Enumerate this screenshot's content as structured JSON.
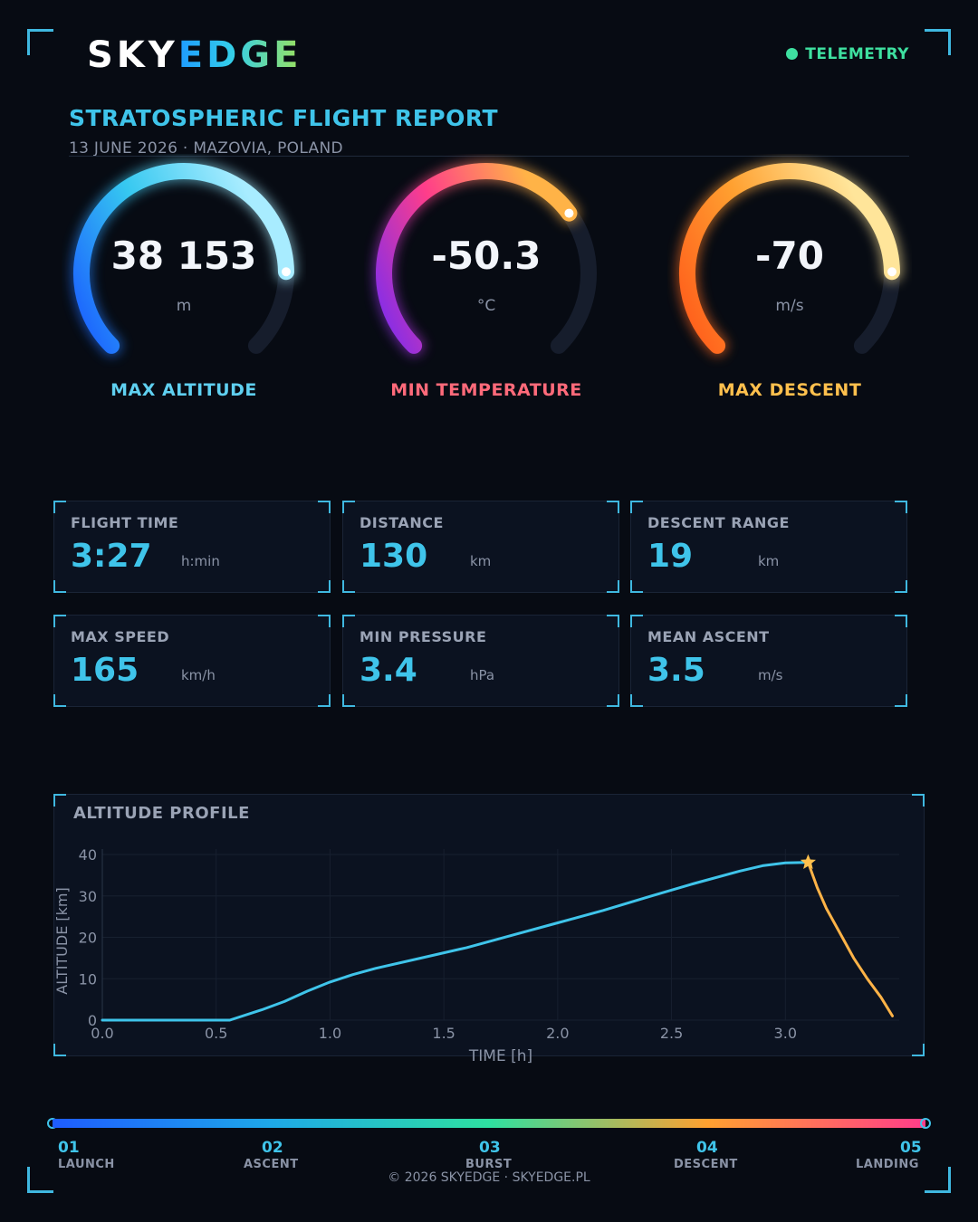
{
  "header": {
    "logo_white": "SKY",
    "logo_gradient": "EDGE",
    "status": "TELEMETRY",
    "status_color": "#3ee0a0"
  },
  "report": {
    "title": "STRATOSPHERIC FLIGHT REPORT",
    "subtitle": "13 JUNE 2026  ·  MAZOVIA, POLAND"
  },
  "gauges": [
    {
      "value": "38 153",
      "unit": "m",
      "label": "MAX ALTITUDE",
      "label_color": "#5fd0f0",
      "fill": 0.83,
      "colors": [
        "#1a5cff",
        "#36c8f0",
        "#a8ecff"
      ]
    },
    {
      "value": "-50.3",
      "unit": "°C",
      "label": "MIN TEMPERATURE",
      "label_color": "#ff6a7a",
      "fill": 0.7,
      "colors": [
        "#7b2cf0",
        "#ff3d8a",
        "#ffb347"
      ]
    },
    {
      "value": "-70",
      "unit": "m/s",
      "label": "MAX DESCENT",
      "label_color": "#ffc04d",
      "fill": 0.83,
      "colors": [
        "#ff5a1a",
        "#ffa030",
        "#ffe59a"
      ]
    }
  ],
  "stats": [
    {
      "label": "FLIGHT TIME",
      "value": "3:27",
      "unit": "h:min"
    },
    {
      "label": "DISTANCE",
      "value": "130",
      "unit": "km"
    },
    {
      "label": "DESCENT RANGE",
      "value": "19",
      "unit": "km"
    },
    {
      "label": "MAX SPEED",
      "value": "165",
      "unit": "km/h"
    },
    {
      "label": "MIN PRESSURE",
      "value": "3.4",
      "unit": "hPa"
    },
    {
      "label": "MEAN ASCENT",
      "value": "3.5",
      "unit": "m/s"
    }
  ],
  "chart_data": {
    "type": "line",
    "title": "ALTITUDE PROFILE",
    "xlabel": "TIME [h]",
    "ylabel": "ALTITUDE [km]",
    "xlim": [
      0,
      3.5
    ],
    "ylim": [
      0,
      40
    ],
    "xticks": [
      "0.0",
      "0.5",
      "1.0",
      "1.5",
      "2.0",
      "2.5",
      "3.0"
    ],
    "yticks": [
      "0",
      "10",
      "20",
      "30",
      "40"
    ],
    "grid": true,
    "series": [
      {
        "color": "#3fc4ea",
        "x": [
          0,
          0.3,
          0.56,
          0.7,
          0.8,
          0.9,
          1.0,
          1.1,
          1.2,
          1.4,
          1.6,
          1.8,
          2.0,
          2.2,
          2.4,
          2.6,
          2.8,
          2.9,
          3.0,
          3.1
        ],
        "y": [
          0,
          0,
          0,
          2.5,
          4.5,
          7,
          9.2,
          11,
          12.5,
          15,
          17.5,
          20.5,
          23.5,
          26.5,
          29.8,
          33,
          36,
          37.3,
          38,
          38.1
        ]
      },
      {
        "color": "#ffb347",
        "x": [
          3.1,
          3.14,
          3.18,
          3.24,
          3.3,
          3.36,
          3.42,
          3.47
        ],
        "y": [
          38.1,
          32,
          27,
          21,
          15,
          10,
          5.5,
          1
        ]
      }
    ],
    "annotations": [
      {
        "type": "star",
        "x": 3.1,
        "y": 38.1,
        "color": "#ffc04d"
      }
    ]
  },
  "phases": [
    {
      "num": "01",
      "label": "LAUNCH"
    },
    {
      "num": "02",
      "label": "ASCENT"
    },
    {
      "num": "03",
      "label": "BURST"
    },
    {
      "num": "04",
      "label": "DESCENT"
    },
    {
      "num": "05",
      "label": "LANDING"
    }
  ],
  "footer": "© 2026 SKYEDGE · SKYEDGE.PL"
}
